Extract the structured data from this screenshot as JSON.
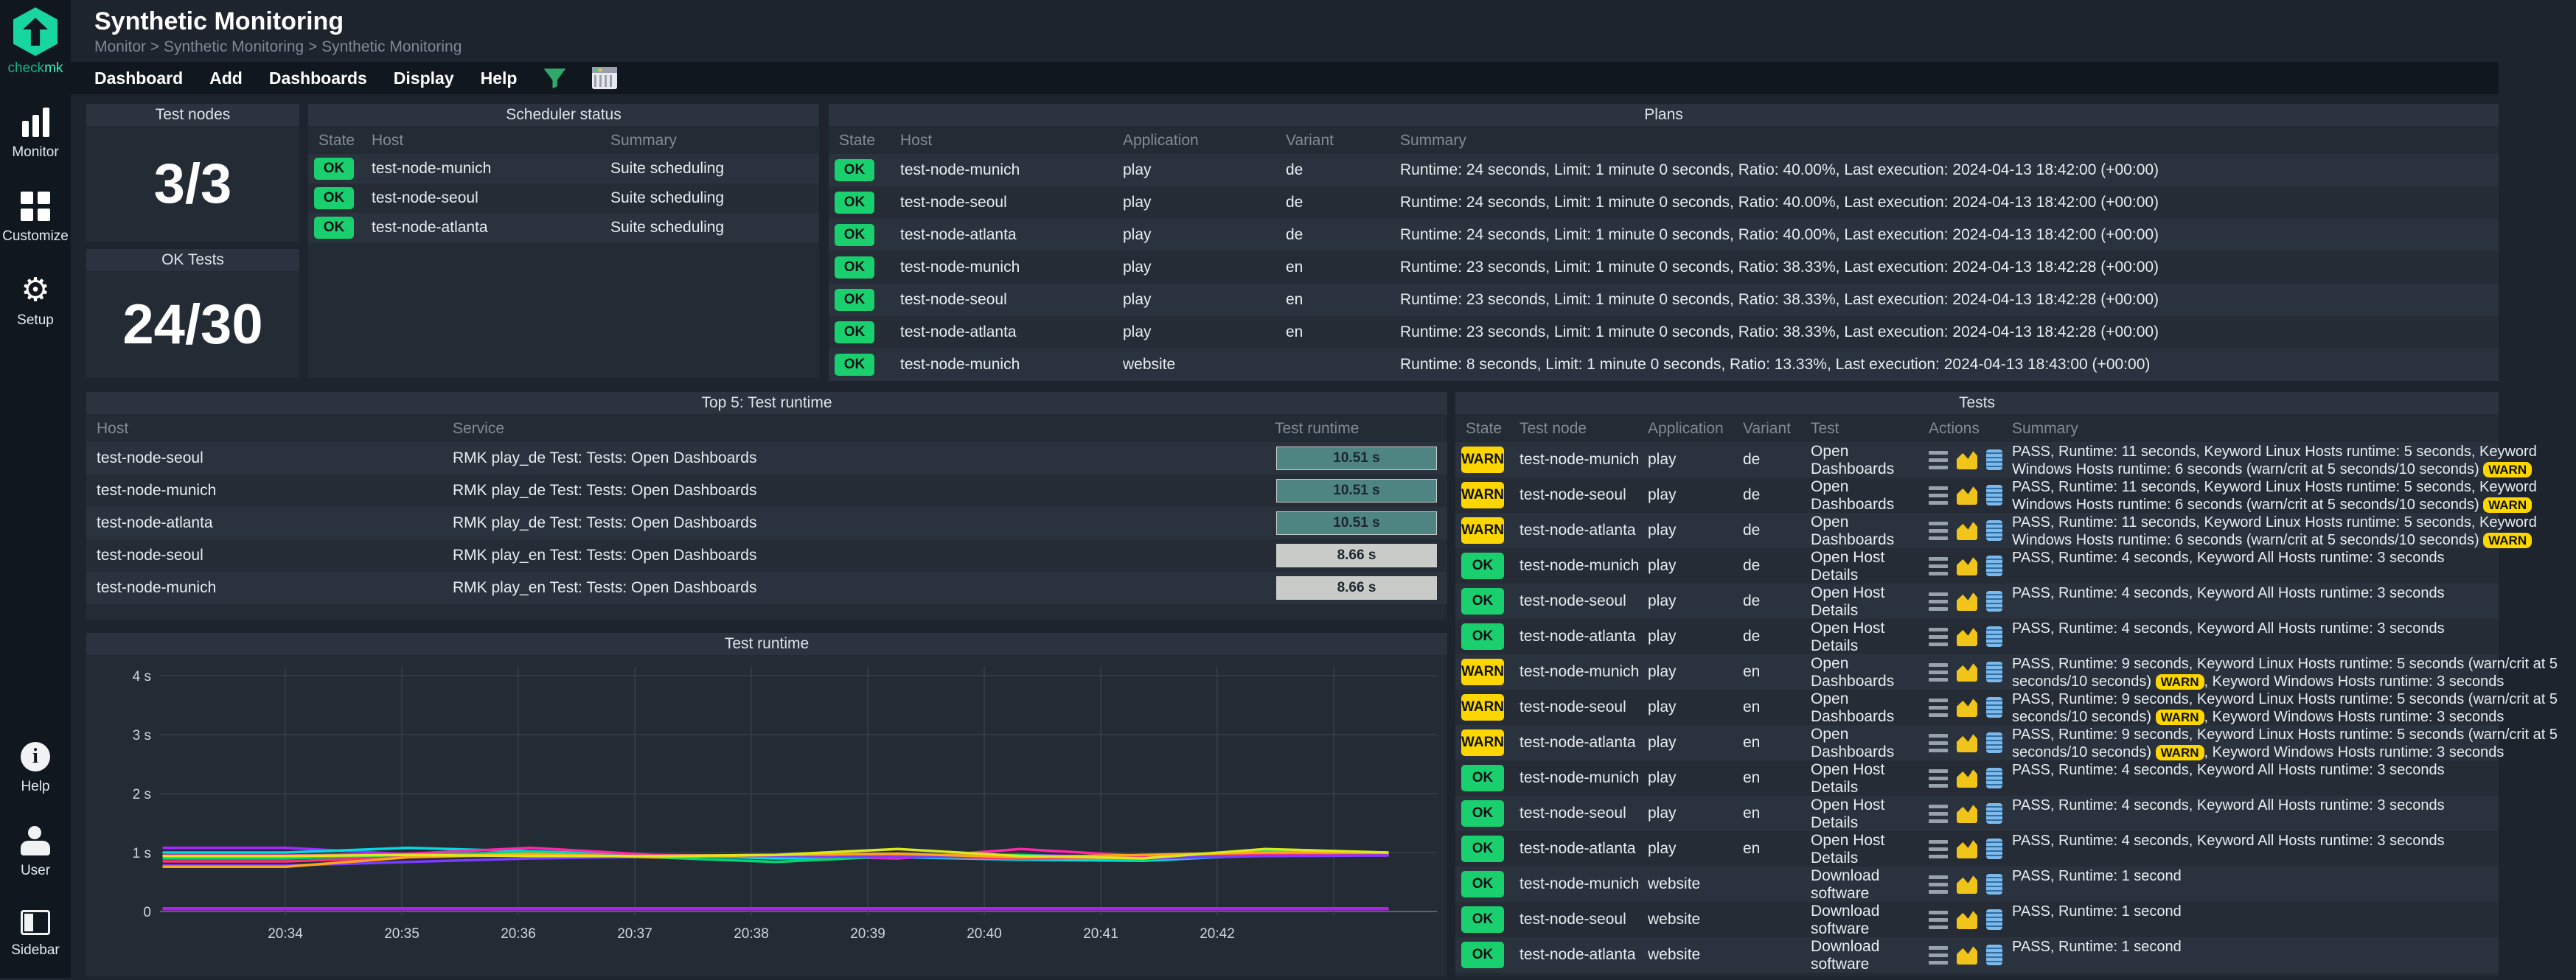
{
  "accent_colors": {
    "brand_green": "#17d6a0",
    "ok_green": "#1ad06e",
    "warn_yellow": "#fdd600",
    "teal_bar": "#4e8481",
    "gray_bar": "#c9cbc8"
  },
  "sidebar": {
    "logo_text_primary": "check",
    "logo_text_secondary": "mk",
    "nav_top": [
      {
        "label": "Monitor",
        "icon": "bar-chart-icon"
      },
      {
        "label": "Customize",
        "icon": "grid-icon"
      },
      {
        "label": "Setup",
        "icon": "gear-icon"
      }
    ],
    "nav_bottom": [
      {
        "label": "Help",
        "icon": "info-icon"
      },
      {
        "label": "User",
        "icon": "user-icon"
      },
      {
        "label": "Sidebar",
        "icon": "sidebar-panel-icon"
      }
    ]
  },
  "header": {
    "title": "Synthetic Monitoring",
    "breadcrumb": "Monitor > Synthetic Monitoring > Synthetic Monitoring",
    "menu": [
      "Dashboard",
      "Add",
      "Dashboards",
      "Display",
      "Help"
    ]
  },
  "test_nodes_panel": {
    "title": "Test nodes",
    "value": "3/3"
  },
  "ok_tests_panel": {
    "title": "OK Tests",
    "value": "24/30"
  },
  "scheduler_panel": {
    "title": "Scheduler status",
    "columns": [
      "State",
      "Host",
      "Summary"
    ],
    "rows": [
      {
        "state": "OK",
        "host": "test-node-munich",
        "summary": "Suite scheduling"
      },
      {
        "state": "OK",
        "host": "test-node-seoul",
        "summary": "Suite scheduling"
      },
      {
        "state": "OK",
        "host": "test-node-atlanta",
        "summary": "Suite scheduling"
      }
    ]
  },
  "plans_panel": {
    "title": "Plans",
    "columns": [
      "State",
      "Host",
      "Application",
      "Variant",
      "Summary"
    ],
    "rows": [
      {
        "state": "OK",
        "host": "test-node-munich",
        "application": "play",
        "variant": "de",
        "summary": "Runtime: 24 seconds, Limit: 1 minute 0 seconds, Ratio: 40.00%, Last execution: 2024-04-13 18:42:00 (+00:00)"
      },
      {
        "state": "OK",
        "host": "test-node-seoul",
        "application": "play",
        "variant": "de",
        "summary": "Runtime: 24 seconds, Limit: 1 minute 0 seconds, Ratio: 40.00%, Last execution: 2024-04-13 18:42:00 (+00:00)"
      },
      {
        "state": "OK",
        "host": "test-node-atlanta",
        "application": "play",
        "variant": "de",
        "summary": "Runtime: 24 seconds, Limit: 1 minute 0 seconds, Ratio: 40.00%, Last execution: 2024-04-13 18:42:00 (+00:00)"
      },
      {
        "state": "OK",
        "host": "test-node-munich",
        "application": "play",
        "variant": "en",
        "summary": "Runtime: 23 seconds, Limit: 1 minute 0 seconds, Ratio: 38.33%, Last execution: 2024-04-13 18:42:28 (+00:00)"
      },
      {
        "state": "OK",
        "host": "test-node-seoul",
        "application": "play",
        "variant": "en",
        "summary": "Runtime: 23 seconds, Limit: 1 minute 0 seconds, Ratio: 38.33%, Last execution: 2024-04-13 18:42:28 (+00:00)"
      },
      {
        "state": "OK",
        "host": "test-node-atlanta",
        "application": "play",
        "variant": "en",
        "summary": "Runtime: 23 seconds, Limit: 1 minute 0 seconds, Ratio: 38.33%, Last execution: 2024-04-13 18:42:28 (+00:00)"
      },
      {
        "state": "OK",
        "host": "test-node-munich",
        "application": "website",
        "variant": "",
        "summary": "Runtime: 8 seconds, Limit: 1 minute 0 seconds, Ratio: 13.33%, Last execution: 2024-04-13 18:43:00 (+00:00)"
      }
    ]
  },
  "top5_panel": {
    "title": "Top 5: Test runtime",
    "columns": [
      "Host",
      "Service",
      "Test runtime"
    ],
    "rows": [
      {
        "host": "test-node-seoul",
        "service": "RMK play_de Test: Tests: Open Dashboards",
        "runtime": "10.51 s",
        "bar": "teal"
      },
      {
        "host": "test-node-munich",
        "service": "RMK play_de Test: Tests: Open Dashboards",
        "runtime": "10.51 s",
        "bar": "teal"
      },
      {
        "host": "test-node-atlanta",
        "service": "RMK play_de Test: Tests: Open Dashboards",
        "runtime": "10.51 s",
        "bar": "teal"
      },
      {
        "host": "test-node-seoul",
        "service": "RMK play_en Test: Tests: Open Dashboards",
        "runtime": "8.66 s",
        "bar": "gray"
      },
      {
        "host": "test-node-munich",
        "service": "RMK play_en Test: Tests: Open Dashboards",
        "runtime": "8.66 s",
        "bar": "gray"
      }
    ]
  },
  "tests_panel": {
    "title": "Tests",
    "columns": [
      "State",
      "Test node",
      "Application",
      "Variant",
      "Test",
      "Actions",
      "Summary"
    ],
    "rows": [
      {
        "state": "WARN",
        "node": "test-node-munich",
        "application": "play",
        "variant": "de",
        "test": "Open Dashboards",
        "summary": [
          {
            "text": "PASS, Runtime: 11 seconds, Keyword Linux Hosts runtime: 5 seconds, Keyword Windows Hosts runtime: 6 seconds (warn/crit at 5 seconds/10 seconds) "
          },
          {
            "badge": "WARN"
          }
        ]
      },
      {
        "state": "WARN",
        "node": "test-node-seoul",
        "application": "play",
        "variant": "de",
        "test": "Open Dashboards",
        "summary": [
          {
            "text": "PASS, Runtime: 11 seconds, Keyword Linux Hosts runtime: 5 seconds, Keyword Windows Hosts runtime: 6 seconds (warn/crit at 5 seconds/10 seconds) "
          },
          {
            "badge": "WARN"
          }
        ]
      },
      {
        "state": "WARN",
        "node": "test-node-atlanta",
        "application": "play",
        "variant": "de",
        "test": "Open Dashboards",
        "summary": [
          {
            "text": "PASS, Runtime: 11 seconds, Keyword Linux Hosts runtime: 5 seconds, Keyword Windows Hosts runtime: 6 seconds (warn/crit at 5 seconds/10 seconds) "
          },
          {
            "badge": "WARN"
          }
        ]
      },
      {
        "state": "OK",
        "node": "test-node-munich",
        "application": "play",
        "variant": "de",
        "test": "Open Host Details",
        "summary": [
          {
            "text": "PASS, Runtime: 4 seconds, Keyword All Hosts runtime: 3 seconds"
          }
        ]
      },
      {
        "state": "OK",
        "node": "test-node-seoul",
        "application": "play",
        "variant": "de",
        "test": "Open Host Details",
        "summary": [
          {
            "text": "PASS, Runtime: 4 seconds, Keyword All Hosts runtime: 3 seconds"
          }
        ]
      },
      {
        "state": "OK",
        "node": "test-node-atlanta",
        "application": "play",
        "variant": "de",
        "test": "Open Host Details",
        "summary": [
          {
            "text": "PASS, Runtime: 4 seconds, Keyword All Hosts runtime: 3 seconds"
          }
        ]
      },
      {
        "state": "WARN",
        "node": "test-node-munich",
        "application": "play",
        "variant": "en",
        "test": "Open Dashboards",
        "summary": [
          {
            "text": "PASS, Runtime: 9 seconds, Keyword Linux Hosts runtime: 5 seconds (warn/crit at 5 seconds/10 seconds) "
          },
          {
            "badge": "WARN"
          },
          {
            "text": ", Keyword Windows Hosts runtime: 3 seconds"
          }
        ]
      },
      {
        "state": "WARN",
        "node": "test-node-seoul",
        "application": "play",
        "variant": "en",
        "test": "Open Dashboards",
        "summary": [
          {
            "text": "PASS, Runtime: 9 seconds, Keyword Linux Hosts runtime: 5 seconds (warn/crit at 5 seconds/10 seconds) "
          },
          {
            "badge": "WARN"
          },
          {
            "text": ", Keyword Windows Hosts runtime: 3 seconds"
          }
        ]
      },
      {
        "state": "WARN",
        "node": "test-node-atlanta",
        "application": "play",
        "variant": "en",
        "test": "Open Dashboards",
        "summary": [
          {
            "text": "PASS, Runtime: 9 seconds, Keyword Linux Hosts runtime: 5 seconds (warn/crit at 5 seconds/10 seconds) "
          },
          {
            "badge": "WARN"
          },
          {
            "text": ", Keyword Windows Hosts runtime: 3 seconds"
          }
        ]
      },
      {
        "state": "OK",
        "node": "test-node-munich",
        "application": "play",
        "variant": "en",
        "test": "Open Host Details",
        "summary": [
          {
            "text": "PASS, Runtime: 4 seconds, Keyword All Hosts runtime: 3 seconds"
          }
        ]
      },
      {
        "state": "OK",
        "node": "test-node-seoul",
        "application": "play",
        "variant": "en",
        "test": "Open Host Details",
        "summary": [
          {
            "text": "PASS, Runtime: 4 seconds, Keyword All Hosts runtime: 3 seconds"
          }
        ]
      },
      {
        "state": "OK",
        "node": "test-node-atlanta",
        "application": "play",
        "variant": "en",
        "test": "Open Host Details",
        "summary": [
          {
            "text": "PASS, Runtime: 4 seconds, Keyword All Hosts runtime: 3 seconds"
          }
        ]
      },
      {
        "state": "OK",
        "node": "test-node-munich",
        "application": "website",
        "variant": "",
        "test": "Download software",
        "summary": [
          {
            "text": "PASS, Runtime: 1 second"
          }
        ]
      },
      {
        "state": "OK",
        "node": "test-node-seoul",
        "application": "website",
        "variant": "",
        "test": "Download software",
        "summary": [
          {
            "text": "PASS, Runtime: 1 second"
          }
        ]
      },
      {
        "state": "OK",
        "node": "test-node-atlanta",
        "application": "website",
        "variant": "",
        "test": "Download software",
        "summary": [
          {
            "text": "PASS, Runtime: 1 second"
          }
        ]
      }
    ],
    "action_icons": [
      "menu-icon",
      "graph-icon",
      "logs-icon"
    ]
  },
  "chart_data": {
    "type": "line",
    "title": "Test runtime",
    "xlabel": "",
    "ylabel": "",
    "x_ticks": [
      "20:34",
      "20:35",
      "20:36",
      "20:37",
      "20:38",
      "20:39",
      "20:40",
      "20:41",
      "20:42"
    ],
    "y_ticks": [
      "0",
      "1 s",
      "2 s",
      "3 s",
      "4 s"
    ],
    "ylim": [
      0,
      4.3
    ],
    "grid": true,
    "legend": "none",
    "series": [
      {
        "name": "runtime-violet",
        "color": "#a22aff",
        "values": [
          1.08,
          1.08,
          0.97,
          1.0,
          0.95,
          0.93,
          0.95,
          0.96,
          0.92,
          0.95,
          0.96
        ]
      },
      {
        "name": "runtime-cyan",
        "color": "#00dbe0",
        "values": [
          1.0,
          1.0,
          1.08,
          1.02,
          0.96,
          0.9,
          0.92,
          0.88,
          0.86,
          0.96,
          0.96
        ]
      },
      {
        "name": "runtime-magenta",
        "color": "#ff28a8",
        "values": [
          0.95,
          0.95,
          0.98,
          1.08,
          0.96,
          0.94,
          0.9,
          1.06,
          0.94,
          1.0,
          0.98
        ]
      },
      {
        "name": "runtime-green",
        "color": "#00d673",
        "values": [
          0.9,
          0.9,
          0.96,
          1.0,
          0.92,
          0.84,
          0.94,
          0.96,
          0.88,
          1.02,
          1.0
        ]
      },
      {
        "name": "runtime-pink",
        "color": "#ff2d78",
        "values": [
          0.85,
          0.85,
          0.92,
          0.96,
          0.94,
          0.96,
          0.94,
          0.9,
          0.92,
          0.96,
          0.95
        ]
      },
      {
        "name": "runtime-purple",
        "color": "#7a3cff",
        "values": [
          0.78,
          0.78,
          0.84,
          0.9,
          0.93,
          0.95,
          0.92,
          0.94,
          0.9,
          0.94,
          0.95
        ]
      },
      {
        "name": "runtime-orange",
        "color": "#ffa419",
        "values": [
          0.76,
          0.76,
          0.92,
          0.98,
          0.92,
          0.96,
          0.98,
          0.92,
          0.96,
          1.0,
          1.0
        ]
      },
      {
        "name": "runtime-yellow",
        "color": "#d8e81c",
        "values": [
          0.94,
          0.94,
          0.96,
          0.94,
          0.94,
          0.96,
          1.06,
          0.94,
          0.9,
          1.06,
          1.0
        ]
      },
      {
        "name": "runtime-flat-magenta",
        "color": "#ff22cc",
        "values": [
          0.05,
          0.05,
          0.05,
          0.05,
          0.05,
          0.05,
          0.05,
          0.05,
          0.05,
          0.05,
          0.05
        ]
      },
      {
        "name": "runtime-flat-purple",
        "color": "#b31cf0",
        "values": [
          0.04,
          0.04,
          0.04,
          0.04,
          0.04,
          0.04,
          0.04,
          0.04,
          0.04,
          0.04,
          0.04
        ]
      }
    ]
  }
}
